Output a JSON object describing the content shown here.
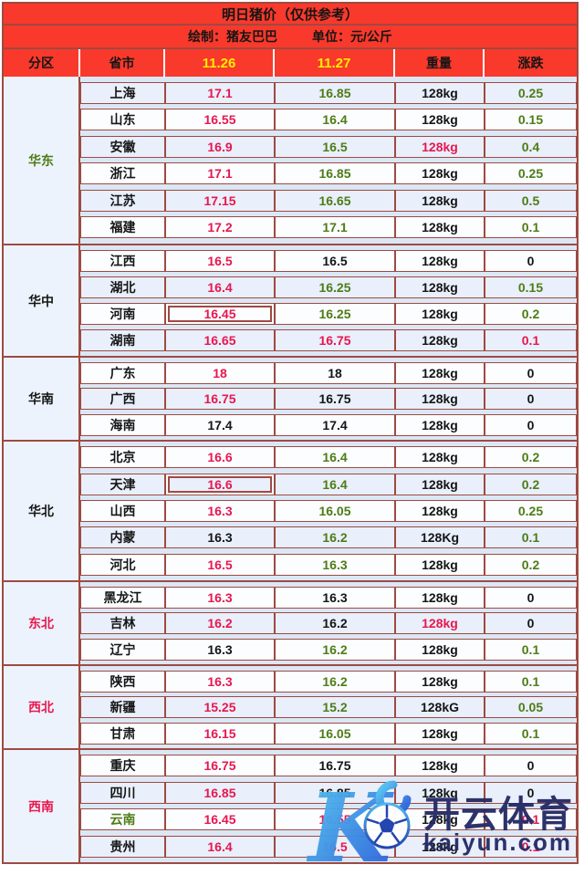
{
  "title": "明日猪价（仅供参考）",
  "subtitle": {
    "author": "绘制：猪友巴巴",
    "unit": "单位：元/公斤"
  },
  "columns": {
    "region": "分区",
    "province": "省市",
    "date1": "11.26",
    "date2": "11.27",
    "weight": "重量",
    "change": "涨跌"
  },
  "colors": {
    "banner_red": "#f9392b",
    "border_maroon": "#9e4a42",
    "date_yellow": "#ffee00",
    "red": "#e7174e",
    "green": "#4e7c15",
    "black": "#151515",
    "cell_bg": "#fbfdff",
    "cell_bg_tint": "#e9effb",
    "region_bg": "#edf3fc",
    "gap_bg": "#dce7f5",
    "watermark_navy": "#242b66",
    "watermark_cyan": "#55c9f2",
    "watermark_blue": "#2a5bd8"
  },
  "regions": [
    {
      "name": "华东",
      "name_color": "green",
      "rows": [
        {
          "province": "上海",
          "pc": "black",
          "p1": "17.1",
          "p1c": "red",
          "boxed1": false,
          "p2": "16.85",
          "p2c": "green",
          "w": "128kg",
          "wc": "black",
          "chg": "0.25",
          "chgc": "green",
          "tint": true
        },
        {
          "province": "山东",
          "pc": "black",
          "p1": "16.55",
          "p1c": "red",
          "boxed1": false,
          "p2": "16.4",
          "p2c": "green",
          "w": "128kg",
          "wc": "black",
          "chg": "0.15",
          "chgc": "green",
          "tint": false
        },
        {
          "province": "安徽",
          "pc": "black",
          "p1": "16.9",
          "p1c": "red",
          "boxed1": false,
          "p2": "16.5",
          "p2c": "green",
          "w": "128kg",
          "wc": "red",
          "chg": "0.4",
          "chgc": "green",
          "tint": true
        },
        {
          "province": "浙江",
          "pc": "black",
          "p1": "17.1",
          "p1c": "red",
          "boxed1": false,
          "p2": "16.85",
          "p2c": "green",
          "w": "128kg",
          "wc": "black",
          "chg": "0.25",
          "chgc": "green",
          "tint": false
        },
        {
          "province": "江苏",
          "pc": "black",
          "p1": "17.15",
          "p1c": "red",
          "boxed1": false,
          "p2": "16.65",
          "p2c": "green",
          "w": "128kg",
          "wc": "black",
          "chg": "0.5",
          "chgc": "green",
          "tint": true
        },
        {
          "province": "福建",
          "pc": "black",
          "p1": "17.2",
          "p1c": "red",
          "boxed1": false,
          "p2": "17.1",
          "p2c": "green",
          "w": "128kg",
          "wc": "black",
          "chg": "0.1",
          "chgc": "green",
          "tint": false
        }
      ]
    },
    {
      "name": "华中",
      "name_color": "black",
      "rows": [
        {
          "province": "江西",
          "pc": "black",
          "p1": "16.5",
          "p1c": "red",
          "boxed1": false,
          "p2": "16.5",
          "p2c": "black",
          "w": "128kg",
          "wc": "black",
          "chg": "0",
          "chgc": "black",
          "tint": false
        },
        {
          "province": "湖北",
          "pc": "black",
          "p1": "16.4",
          "p1c": "red",
          "boxed1": false,
          "p2": "16.25",
          "p2c": "green",
          "w": "128kg",
          "wc": "black",
          "chg": "0.15",
          "chgc": "green",
          "tint": true
        },
        {
          "province": "河南",
          "pc": "black",
          "p1": "16.45",
          "p1c": "red",
          "boxed1": true,
          "p2": "16.25",
          "p2c": "green",
          "w": "128kg",
          "wc": "black",
          "chg": "0.2",
          "chgc": "green",
          "tint": false
        },
        {
          "province": "湖南",
          "pc": "black",
          "p1": "16.65",
          "p1c": "red",
          "boxed1": false,
          "p2": "16.75",
          "p2c": "red",
          "w": "128kg",
          "wc": "black",
          "chg": "0.1",
          "chgc": "red",
          "tint": true
        }
      ]
    },
    {
      "name": "华南",
      "name_color": "black",
      "rows": [
        {
          "province": "广东",
          "pc": "black",
          "p1": "18",
          "p1c": "red",
          "boxed1": false,
          "p2": "18",
          "p2c": "black",
          "w": "128kg",
          "wc": "black",
          "chg": "0",
          "chgc": "black",
          "tint": false
        },
        {
          "province": "广西",
          "pc": "black",
          "p1": "16.75",
          "p1c": "red",
          "boxed1": false,
          "p2": "16.75",
          "p2c": "black",
          "w": "128kg",
          "wc": "black",
          "chg": "0",
          "chgc": "black",
          "tint": true
        },
        {
          "province": "海南",
          "pc": "black",
          "p1": "17.4",
          "p1c": "black",
          "boxed1": false,
          "p2": "17.4",
          "p2c": "black",
          "w": "128kg",
          "wc": "black",
          "chg": "0",
          "chgc": "black",
          "tint": false
        }
      ]
    },
    {
      "name": "华北",
      "name_color": "black",
      "rows": [
        {
          "province": "北京",
          "pc": "black",
          "p1": "16.6",
          "p1c": "red",
          "boxed1": false,
          "p2": "16.4",
          "p2c": "green",
          "w": "128kg",
          "wc": "black",
          "chg": "0.2",
          "chgc": "green",
          "tint": false
        },
        {
          "province": "天津",
          "pc": "black",
          "p1": "16.6",
          "p1c": "red",
          "boxed1": true,
          "p2": "16.4",
          "p2c": "green",
          "w": "128kg",
          "wc": "black",
          "chg": "0.2",
          "chgc": "green",
          "tint": true
        },
        {
          "province": "山西",
          "pc": "black",
          "p1": "16.3",
          "p1c": "red",
          "boxed1": false,
          "p2": "16.05",
          "p2c": "green",
          "w": "128kg",
          "wc": "black",
          "chg": "0.25",
          "chgc": "green",
          "tint": false
        },
        {
          "province": "内蒙",
          "pc": "black",
          "p1": "16.3",
          "p1c": "black",
          "boxed1": false,
          "p2": "16.2",
          "p2c": "green",
          "w": "128Kg",
          "wc": "black",
          "chg": "0.1",
          "chgc": "green",
          "tint": true
        },
        {
          "province": "河北",
          "pc": "black",
          "p1": "16.5",
          "p1c": "red",
          "boxed1": false,
          "p2": "16.3",
          "p2c": "green",
          "w": "128kg",
          "wc": "black",
          "chg": "0.2",
          "chgc": "green",
          "tint": false
        }
      ]
    },
    {
      "name": "东北",
      "name_color": "red",
      "rows": [
        {
          "province": "黑龙江",
          "pc": "black",
          "p1": "16.3",
          "p1c": "red",
          "boxed1": false,
          "p2": "16.3",
          "p2c": "black",
          "w": "128kg",
          "wc": "black",
          "chg": "0",
          "chgc": "black",
          "tint": false
        },
        {
          "province": "吉林",
          "pc": "black",
          "p1": "16.2",
          "p1c": "red",
          "boxed1": false,
          "p2": "16.2",
          "p2c": "black",
          "w": "128kg",
          "wc": "red",
          "chg": "0",
          "chgc": "black",
          "tint": true
        },
        {
          "province": "辽宁",
          "pc": "black",
          "p1": "16.3",
          "p1c": "black",
          "boxed1": false,
          "p2": "16.2",
          "p2c": "green",
          "w": "128kg",
          "wc": "black",
          "chg": "0.1",
          "chgc": "green",
          "tint": false
        }
      ]
    },
    {
      "name": "西北",
      "name_color": "red",
      "rows": [
        {
          "province": "陕西",
          "pc": "black",
          "p1": "16.3",
          "p1c": "red",
          "boxed1": false,
          "p2": "16.2",
          "p2c": "green",
          "w": "128kg",
          "wc": "black",
          "chg": "0.1",
          "chgc": "green",
          "tint": false
        },
        {
          "province": "新疆",
          "pc": "black",
          "p1": "15.25",
          "p1c": "red",
          "boxed1": false,
          "p2": "15.2",
          "p2c": "green",
          "w": "128kG",
          "wc": "black",
          "chg": "0.05",
          "chgc": "green",
          "tint": true
        },
        {
          "province": "甘肃",
          "pc": "black",
          "p1": "16.15",
          "p1c": "red",
          "boxed1": false,
          "p2": "16.05",
          "p2c": "green",
          "w": "128kg",
          "wc": "black",
          "chg": "0.1",
          "chgc": "green",
          "tint": false
        }
      ]
    },
    {
      "name": "西南",
      "name_color": "red",
      "rows": [
        {
          "province": "重庆",
          "pc": "black",
          "p1": "16.75",
          "p1c": "red",
          "boxed1": false,
          "p2": "16.75",
          "p2c": "black",
          "w": "128kg",
          "wc": "black",
          "chg": "0",
          "chgc": "black",
          "tint": false
        },
        {
          "province": "四川",
          "pc": "black",
          "p1": "16.85",
          "p1c": "red",
          "boxed1": false,
          "p2": "16.85",
          "p2c": "black",
          "w": "128kg",
          "wc": "black",
          "chg": "0",
          "chgc": "black",
          "tint": true
        },
        {
          "province": "云南",
          "pc": "green",
          "p1": "16.45",
          "p1c": "red",
          "boxed1": false,
          "p2": "16.55",
          "p2c": "red",
          "w": "128kg",
          "wc": "black",
          "chg": "0.1",
          "chgc": "red",
          "tint": false
        },
        {
          "province": "贵州",
          "pc": "black",
          "p1": "16.4",
          "p1c": "red",
          "boxed1": false,
          "p2": "16.5",
          "p2c": "red",
          "w": "128kg",
          "wc": "black",
          "chg": "0.1",
          "chgc": "red",
          "tint": true
        }
      ]
    }
  ],
  "watermark": {
    "brand": "开云体育",
    "domain": "kaiyun.com"
  },
  "chart_data": {
    "type": "table",
    "title": "明日猪价（仅供参考）",
    "subtitle": "绘制：猪友巴巴 单位：元/公斤",
    "columns": [
      "分区",
      "省市",
      "11.26",
      "11.27",
      "重量",
      "涨跌"
    ],
    "rows": [
      [
        "华东",
        "上海",
        17.1,
        16.85,
        "128kg",
        0.25
      ],
      [
        "华东",
        "山东",
        16.55,
        16.4,
        "128kg",
        0.15
      ],
      [
        "华东",
        "安徽",
        16.9,
        16.5,
        "128kg",
        0.4
      ],
      [
        "华东",
        "浙江",
        17.1,
        16.85,
        "128kg",
        0.25
      ],
      [
        "华东",
        "江苏",
        17.15,
        16.65,
        "128kg",
        0.5
      ],
      [
        "华东",
        "福建",
        17.2,
        17.1,
        "128kg",
        0.1
      ],
      [
        "华中",
        "江西",
        16.5,
        16.5,
        "128kg",
        0
      ],
      [
        "华中",
        "湖北",
        16.4,
        16.25,
        "128kg",
        0.15
      ],
      [
        "华中",
        "河南",
        16.45,
        16.25,
        "128kg",
        0.2
      ],
      [
        "华中",
        "湖南",
        16.65,
        16.75,
        "128kg",
        0.1
      ],
      [
        "华南",
        "广东",
        18,
        18,
        "128kg",
        0
      ],
      [
        "华南",
        "广西",
        16.75,
        16.75,
        "128kg",
        0
      ],
      [
        "华南",
        "海南",
        17.4,
        17.4,
        "128kg",
        0
      ],
      [
        "华北",
        "北京",
        16.6,
        16.4,
        "128kg",
        0.2
      ],
      [
        "华北",
        "天津",
        16.6,
        16.4,
        "128kg",
        0.2
      ],
      [
        "华北",
        "山西",
        16.3,
        16.05,
        "128kg",
        0.25
      ],
      [
        "华北",
        "内蒙",
        16.3,
        16.2,
        "128Kg",
        0.1
      ],
      [
        "华北",
        "河北",
        16.5,
        16.3,
        "128kg",
        0.2
      ],
      [
        "东北",
        "黑龙江",
        16.3,
        16.3,
        "128kg",
        0
      ],
      [
        "东北",
        "吉林",
        16.2,
        16.2,
        "128kg",
        0
      ],
      [
        "东北",
        "辽宁",
        16.3,
        16.2,
        "128kg",
        0.1
      ],
      [
        "西北",
        "陕西",
        16.3,
        16.2,
        "128kg",
        0.1
      ],
      [
        "西北",
        "新疆",
        15.25,
        15.2,
        "128kG",
        0.05
      ],
      [
        "西北",
        "甘肃",
        16.15,
        16.05,
        "128kg",
        0.1
      ],
      [
        "西南",
        "重庆",
        16.75,
        16.75,
        "128kg",
        0
      ],
      [
        "西南",
        "四川",
        16.85,
        16.85,
        "128kg",
        0
      ],
      [
        "西南",
        "云南",
        16.45,
        16.55,
        "128kg",
        0.1
      ],
      [
        "西南",
        "贵州",
        16.4,
        16.5,
        "128kg",
        0.1
      ]
    ]
  }
}
